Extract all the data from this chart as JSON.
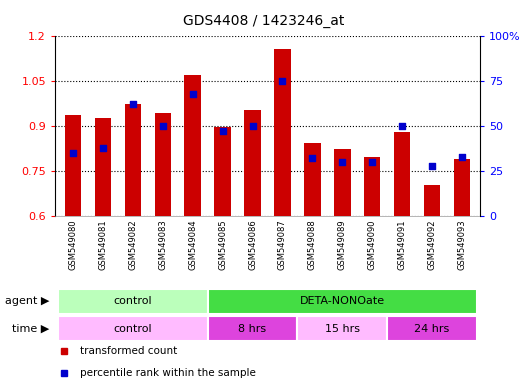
{
  "title": "GDS4408 / 1423246_at",
  "categories": [
    "GSM549080",
    "GSM549081",
    "GSM549082",
    "GSM549083",
    "GSM549084",
    "GSM549085",
    "GSM549086",
    "GSM549087",
    "GSM549088",
    "GSM549089",
    "GSM549090",
    "GSM549091",
    "GSM549092",
    "GSM549093"
  ],
  "bar_values": [
    0.935,
    0.925,
    0.975,
    0.945,
    1.07,
    0.895,
    0.955,
    1.155,
    0.845,
    0.825,
    0.795,
    0.88,
    0.705,
    0.79
  ],
  "percentile_pct": [
    35,
    38,
    62,
    50,
    68,
    47,
    50,
    75,
    32,
    30,
    30,
    50,
    28,
    33
  ],
  "bar_color": "#cc0000",
  "dot_color": "#0000cc",
  "ylim_left": [
    0.6,
    1.2
  ],
  "ylim_right": [
    0,
    100
  ],
  "yticks_left": [
    0.6,
    0.75,
    0.9,
    1.05,
    1.2
  ],
  "yticks_right": [
    0,
    25,
    50,
    75,
    100
  ],
  "ytick_labels_right": [
    "0",
    "25",
    "50",
    "75",
    "100%"
  ],
  "bar_width": 0.55,
  "agent_segments": [
    {
      "text": "control",
      "start": 0,
      "end": 4,
      "color": "#bbffbb"
    },
    {
      "text": "DETA-NONOate",
      "start": 5,
      "end": 13,
      "color": "#44dd44"
    }
  ],
  "time_segments": [
    {
      "text": "control",
      "start": 0,
      "end": 4,
      "color": "#ffbbff"
    },
    {
      "text": "8 hrs",
      "start": 5,
      "end": 7,
      "color": "#dd44dd"
    },
    {
      "text": "15 hrs",
      "start": 8,
      "end": 10,
      "color": "#ffbbff"
    },
    {
      "text": "24 hrs",
      "start": 11,
      "end": 13,
      "color": "#dd44dd"
    }
  ],
  "legend_items": [
    {
      "label": "transformed count",
      "color": "#cc0000"
    },
    {
      "label": "percentile rank within the sample",
      "color": "#0000cc"
    }
  ],
  "xticklabel_bg": "#cccccc",
  "left_label_color": "#555555"
}
